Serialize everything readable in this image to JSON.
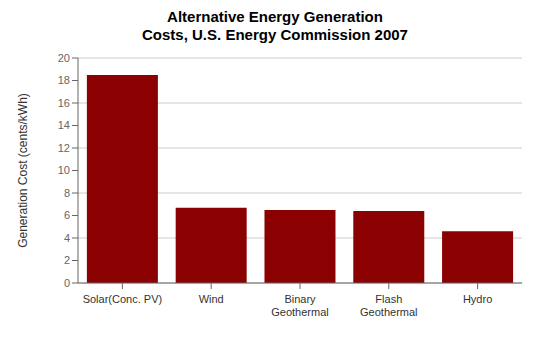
{
  "chart_data": {
    "type": "bar",
    "title": "Alternative Energy Generation\nCosts, U.S. Energy Commission 2007",
    "categories": [
      "Solar(Conc. PV)",
      "Wind",
      "Binary\nGeothermal",
      "Flash\nGeothermal",
      "Hydro"
    ],
    "values": [
      18.5,
      6.7,
      6.5,
      6.4,
      4.6
    ],
    "color": "#8B0000",
    "ylabel": "Generation Cost (cents/kWh)",
    "ylim": [
      0,
      20
    ],
    "yticks": [
      0,
      2,
      4,
      6,
      8,
      10,
      12,
      14,
      16,
      18,
      20
    ],
    "grid": true
  }
}
